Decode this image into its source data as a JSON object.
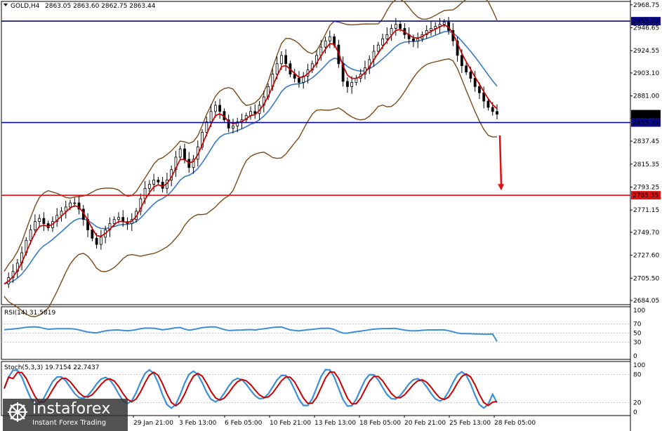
{
  "header": {
    "symbol": "GOLD,H4",
    "ohlc": "2863.05 2863.60 2862.75 2863.44"
  },
  "levels": {
    "resistance": {
      "value": 2953.0,
      "label": "2953.00",
      "color": "#0a0a8a"
    },
    "current": {
      "value": 2863.44,
      "label": "2863.44",
      "color": "#000000"
    },
    "support": {
      "value": 2855.35,
      "label": "2855.35",
      "color": "#0a0a8a"
    },
    "target": {
      "value": 2785.35,
      "label": "2785.35",
      "color": "#e01010"
    }
  },
  "colors": {
    "candle": "#000000",
    "ma_fast": "#cc0000",
    "ma_slow": "#3a78c8",
    "bollinger": "#7a4a1a",
    "rsi": "#3a8fd8",
    "stoch_main": "#3a8fd8",
    "stoch_signal": "#cc0000",
    "arrow": "#e01010",
    "grid": "#c8c8c8"
  },
  "rsi_panel": {
    "label": "RSI(14) 31.5819",
    "ticks": [
      "100",
      "70",
      "50",
      "30",
      "0"
    ]
  },
  "stoch_panel": {
    "label": "Stoch(5,3,3) 19.7154 22.7437",
    "ticks": [
      "100",
      "80",
      "20",
      "0"
    ]
  },
  "watermark": {
    "brand": "instaforex",
    "tagline": "Instant Forex Trading"
  },
  "chart_data": {
    "type": "candlestick",
    "y_ticks": [
      2968.75,
      2946.65,
      2924.55,
      2903.1,
      2881.0,
      2859.55,
      2837.45,
      2815.35,
      2793.25,
      2771.15,
      2749.7,
      2727.6,
      2705.5,
      2684.05
    ],
    "y_tick_labels": [
      "2968.75",
      "2946.65",
      "2924.55",
      "2903.10",
      "2881.00",
      "2859.55",
      "2837.45",
      "2815.35",
      "2793.25",
      "2771.15",
      "2749.70",
      "2727.60",
      "2705.50",
      "2684.05"
    ],
    "x_tick_labels": [
      "29 Jan 21:00",
      "3 Feb 13:00",
      "6 Feb 05:00",
      "10 Feb 21:00",
      "13 Feb 13:00",
      "18 Feb 05:00",
      "20 Feb 21:00",
      "25 Feb 13:00",
      "28 Feb 05:00"
    ],
    "ylim": [
      2680,
      2972
    ],
    "close_path": [
      2700,
      2706,
      2712,
      2720,
      2730,
      2742,
      2752,
      2760,
      2763,
      2758,
      2754,
      2760,
      2766,
      2770,
      2774,
      2778,
      2778,
      2772,
      2762,
      2752,
      2744,
      2738,
      2745,
      2752,
      2758,
      2762,
      2764,
      2760,
      2758,
      2762,
      2770,
      2782,
      2792,
      2796,
      2800,
      2798,
      2792,
      2800,
      2810,
      2822,
      2830,
      2820,
      2812,
      2820,
      2832,
      2846,
      2856,
      2866,
      2872,
      2866,
      2858,
      2850,
      2852,
      2856,
      2858,
      2862,
      2866,
      2864,
      2872,
      2880,
      2890,
      2902,
      2912,
      2920,
      2912,
      2902,
      2898,
      2894,
      2900,
      2906,
      2912,
      2920,
      2928,
      2934,
      2938,
      2930,
      2912,
      2895,
      2890,
      2894,
      2898,
      2902,
      2908,
      2916,
      2924,
      2930,
      2936,
      2940,
      2946,
      2950,
      2946,
      2940,
      2936,
      2934,
      2936,
      2940,
      2944,
      2946,
      2948,
      2950,
      2952,
      2944,
      2934,
      2920,
      2910,
      2904,
      2898,
      2890,
      2884,
      2876,
      2870,
      2866,
      2863.44
    ],
    "rsi_value": 31.5819,
    "stoch_k": 19.7154,
    "stoch_d": 22.7437
  }
}
